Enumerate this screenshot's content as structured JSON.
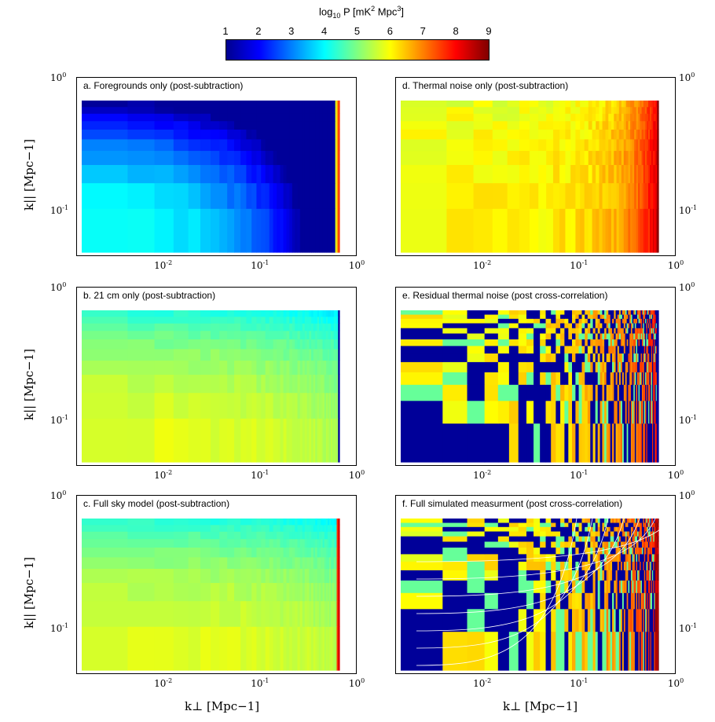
{
  "colorbar": {
    "label": "log10 P [mK2 Mpc3]",
    "label_main": "log",
    "label_sub": "10",
    "label_mid": " P [mK",
    "label_sup1": "2",
    "label_mid2": " Mpc",
    "label_sup2": "3",
    "label_end": "]",
    "ticks": [
      "1",
      "2",
      "3",
      "4",
      "5",
      "6",
      "7",
      "8",
      "9"
    ],
    "range": [
      1,
      9
    ],
    "colormap": "jet"
  },
  "axes": {
    "xlabel": "k⊥ [Mpc−1]",
    "ylabel": "k|| [Mpc−1]",
    "xtick_base": "10",
    "xtick_exps": [
      "-2",
      "-1",
      "0"
    ],
    "ytick_base": "10",
    "ytick_exps": [
      "0",
      "-1"
    ]
  },
  "chart_data": [
    {
      "type": "heatmap",
      "title": "a. Foregrounds only (post-subtraction)",
      "x_scale": "log",
      "y_scale": "log",
      "xlim": [
        0.0015,
        1
      ],
      "ylim": [
        0.045,
        1
      ],
      "pattern": "foreground",
      "color_range": [
        1,
        9
      ]
    },
    {
      "type": "heatmap",
      "title": "d. Thermal noise only (post-subtraction)",
      "x_scale": "log",
      "y_scale": "log",
      "xlim": [
        0.0015,
        1
      ],
      "ylim": [
        0.045,
        1
      ],
      "pattern": "noise",
      "color_range": [
        1,
        9
      ]
    },
    {
      "type": "heatmap",
      "title": "b. 21 cm only (post-subtraction)",
      "x_scale": "log",
      "y_scale": "log",
      "xlim": [
        0.0015,
        1
      ],
      "ylim": [
        0.045,
        1
      ],
      "pattern": "signal",
      "color_range": [
        1,
        9
      ]
    },
    {
      "type": "heatmap",
      "title": "e. Residual thermal noise (post cross-correlation)",
      "x_scale": "log",
      "y_scale": "log",
      "xlim": [
        0.0015,
        1
      ],
      "ylim": [
        0.045,
        1
      ],
      "pattern": "residual",
      "color_range": [
        1,
        9
      ]
    },
    {
      "type": "heatmap",
      "title": "c. Full sky model (post-subtraction)",
      "x_scale": "log",
      "y_scale": "log",
      "xlim": [
        0.0015,
        1
      ],
      "ylim": [
        0.045,
        1
      ],
      "pattern": "fullsky",
      "color_range": [
        1,
        9
      ]
    },
    {
      "type": "heatmap",
      "title": "f. Full simulated measurment (post cross-correlation)",
      "x_scale": "log",
      "y_scale": "log",
      "xlim": [
        0.0015,
        1
      ],
      "ylim": [
        0.045,
        1
      ],
      "pattern": "fullsim",
      "color_range": [
        1,
        9
      ]
    }
  ]
}
